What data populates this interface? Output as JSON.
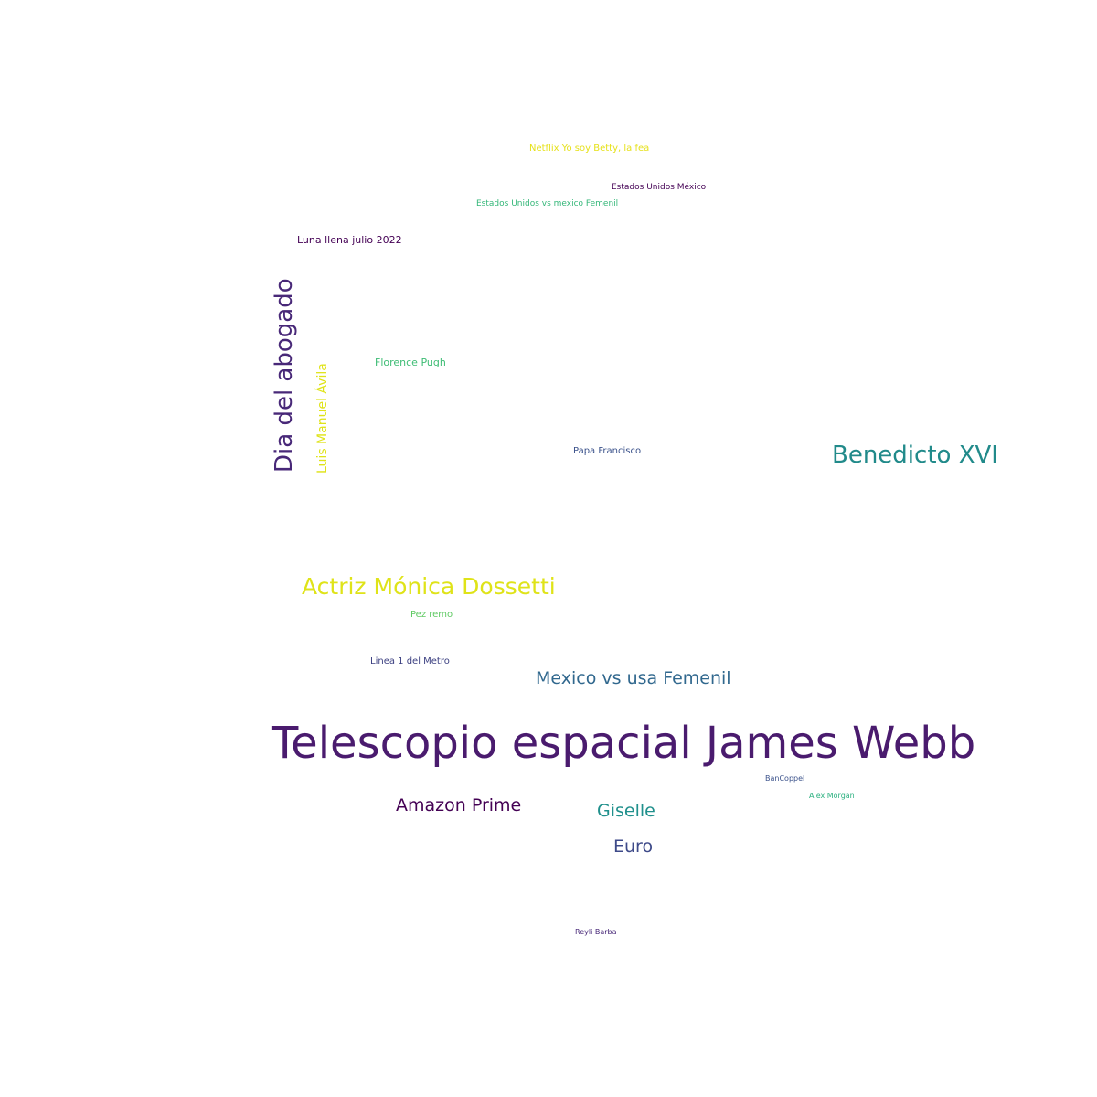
{
  "words": {
    "telescopio": {
      "text": "Telescopio espacial James Webb",
      "color": "#4a1b6e"
    },
    "benedicto": {
      "text": "Benedicto XVI",
      "color": "#218a8a"
    },
    "abogado": {
      "text": "Dia del abogado",
      "color": "#482878"
    },
    "monica": {
      "text": "Actriz Mónica Dossetti",
      "color": "#dfe318"
    },
    "mexusa": {
      "text": "Mexico vs usa Femenil",
      "color": "#31688e"
    },
    "amazon": {
      "text": "Amazon Prime",
      "color": "#440154"
    },
    "giselle": {
      "text": "Giselle",
      "color": "#20908c"
    },
    "euro": {
      "text": "Euro",
      "color": "#3e4a89"
    },
    "luisma": {
      "text": "Luis Manuel Ávila",
      "color": "#dfe318"
    },
    "netflix": {
      "text": "Netflix Yo soy Betty, la fea",
      "color": "#e6e11a"
    },
    "eu_mx": {
      "text": "Estados Unidos  México",
      "color": "#440154"
    },
    "eu_mx_fem": {
      "text": "Estados Unidos vs mexico Femenil",
      "color": "#35b779"
    },
    "luna": {
      "text": "Luna llena julio 2022",
      "color": "#440154"
    },
    "florence": {
      "text": "Florence Pugh",
      "color": "#3dbc74"
    },
    "papa": {
      "text": "Papa Francisco",
      "color": "#3b528b"
    },
    "pez": {
      "text": "Pez remo",
      "color": "#5ec962"
    },
    "linea": {
      "text": "Linea 1 del Metro",
      "color": "#3b3f80"
    },
    "bancoppel": {
      "text": "BanCoppel",
      "color": "#3b528b"
    },
    "alex": {
      "text": "Alex Morgan",
      "color": "#2ab07f"
    },
    "reyli": {
      "text": "Reyli Barba",
      "color": "#482878"
    }
  }
}
